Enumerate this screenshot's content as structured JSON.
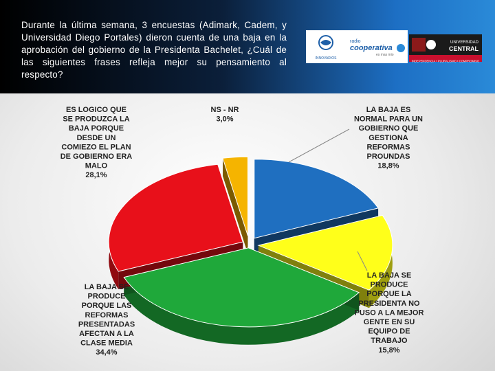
{
  "question": "Durante la última semana, 3 encuestas (Adimark, Cadem, y Universidad Diego Portales) dieron cuenta de una baja en la aprobación del gobierno de la Presidenta Bachelet, ¿Cuál de las siguientes frases refleja mejor su pensamiento al respecto?",
  "logos": {
    "logo1_sub": "INNOVARIOS",
    "logo2_top": "radio",
    "logo2_main": "cooperativa",
    "logo2_sub": "es mas mio",
    "logo3_top": "UNIVERSIDAD",
    "logo3_main": "CENTRAL",
    "logo3_strip": "INDEPENDENCIA • PLURALISMO • COMPROMISO"
  },
  "colors": {
    "blue": "#1f6fc0",
    "yellow": "#ffff1a",
    "green": "#1fa83a",
    "red": "#e8101a",
    "orange": "#f5b400"
  },
  "chart_data": {
    "type": "pie",
    "slices": [
      {
        "label_lines": [
          "LA BAJA ES",
          "NORMAL PARA UN",
          "GOBIERNO QUE",
          "GESTIONA",
          "REFORMAS",
          "PROUNDAS"
        ],
        "value": 18.8,
        "value_text": "18,8%",
        "color": "#1f6fc0"
      },
      {
        "label_lines": [
          "LA BAJA SE",
          "PRODUCE",
          "PORQUE LA",
          "PRESIDENTA NO",
          "PUSO A LA MEJOR",
          "GENTE EN SU",
          "EQUIPO DE",
          "TRABAJO"
        ],
        "value": 15.8,
        "value_text": "15,8%",
        "color": "#ffff1a"
      },
      {
        "label_lines": [
          "LA BAJA SE",
          "PRODUCE",
          "PORQUE LAS",
          "REFORMAS",
          "PRESENTADAS",
          "AFECTAN A LA",
          "CLASE MEDIA"
        ],
        "value": 34.4,
        "value_text": "34,4%",
        "color": "#1fa83a"
      },
      {
        "label_lines": [
          "ES LOGICO QUE",
          "SE PRODUZCA LA",
          "BAJA PORQUE",
          "DESDE UN",
          "COMIEZO EL PLAN",
          "DE GOBIERNO ERA",
          "MALO"
        ],
        "value": 28.1,
        "value_text": "28,1%",
        "color": "#e8101a"
      },
      {
        "label_lines": [
          "NS - NR"
        ],
        "value": 3.0,
        "value_text": "3,0%",
        "color": "#f5b400"
      }
    ]
  }
}
